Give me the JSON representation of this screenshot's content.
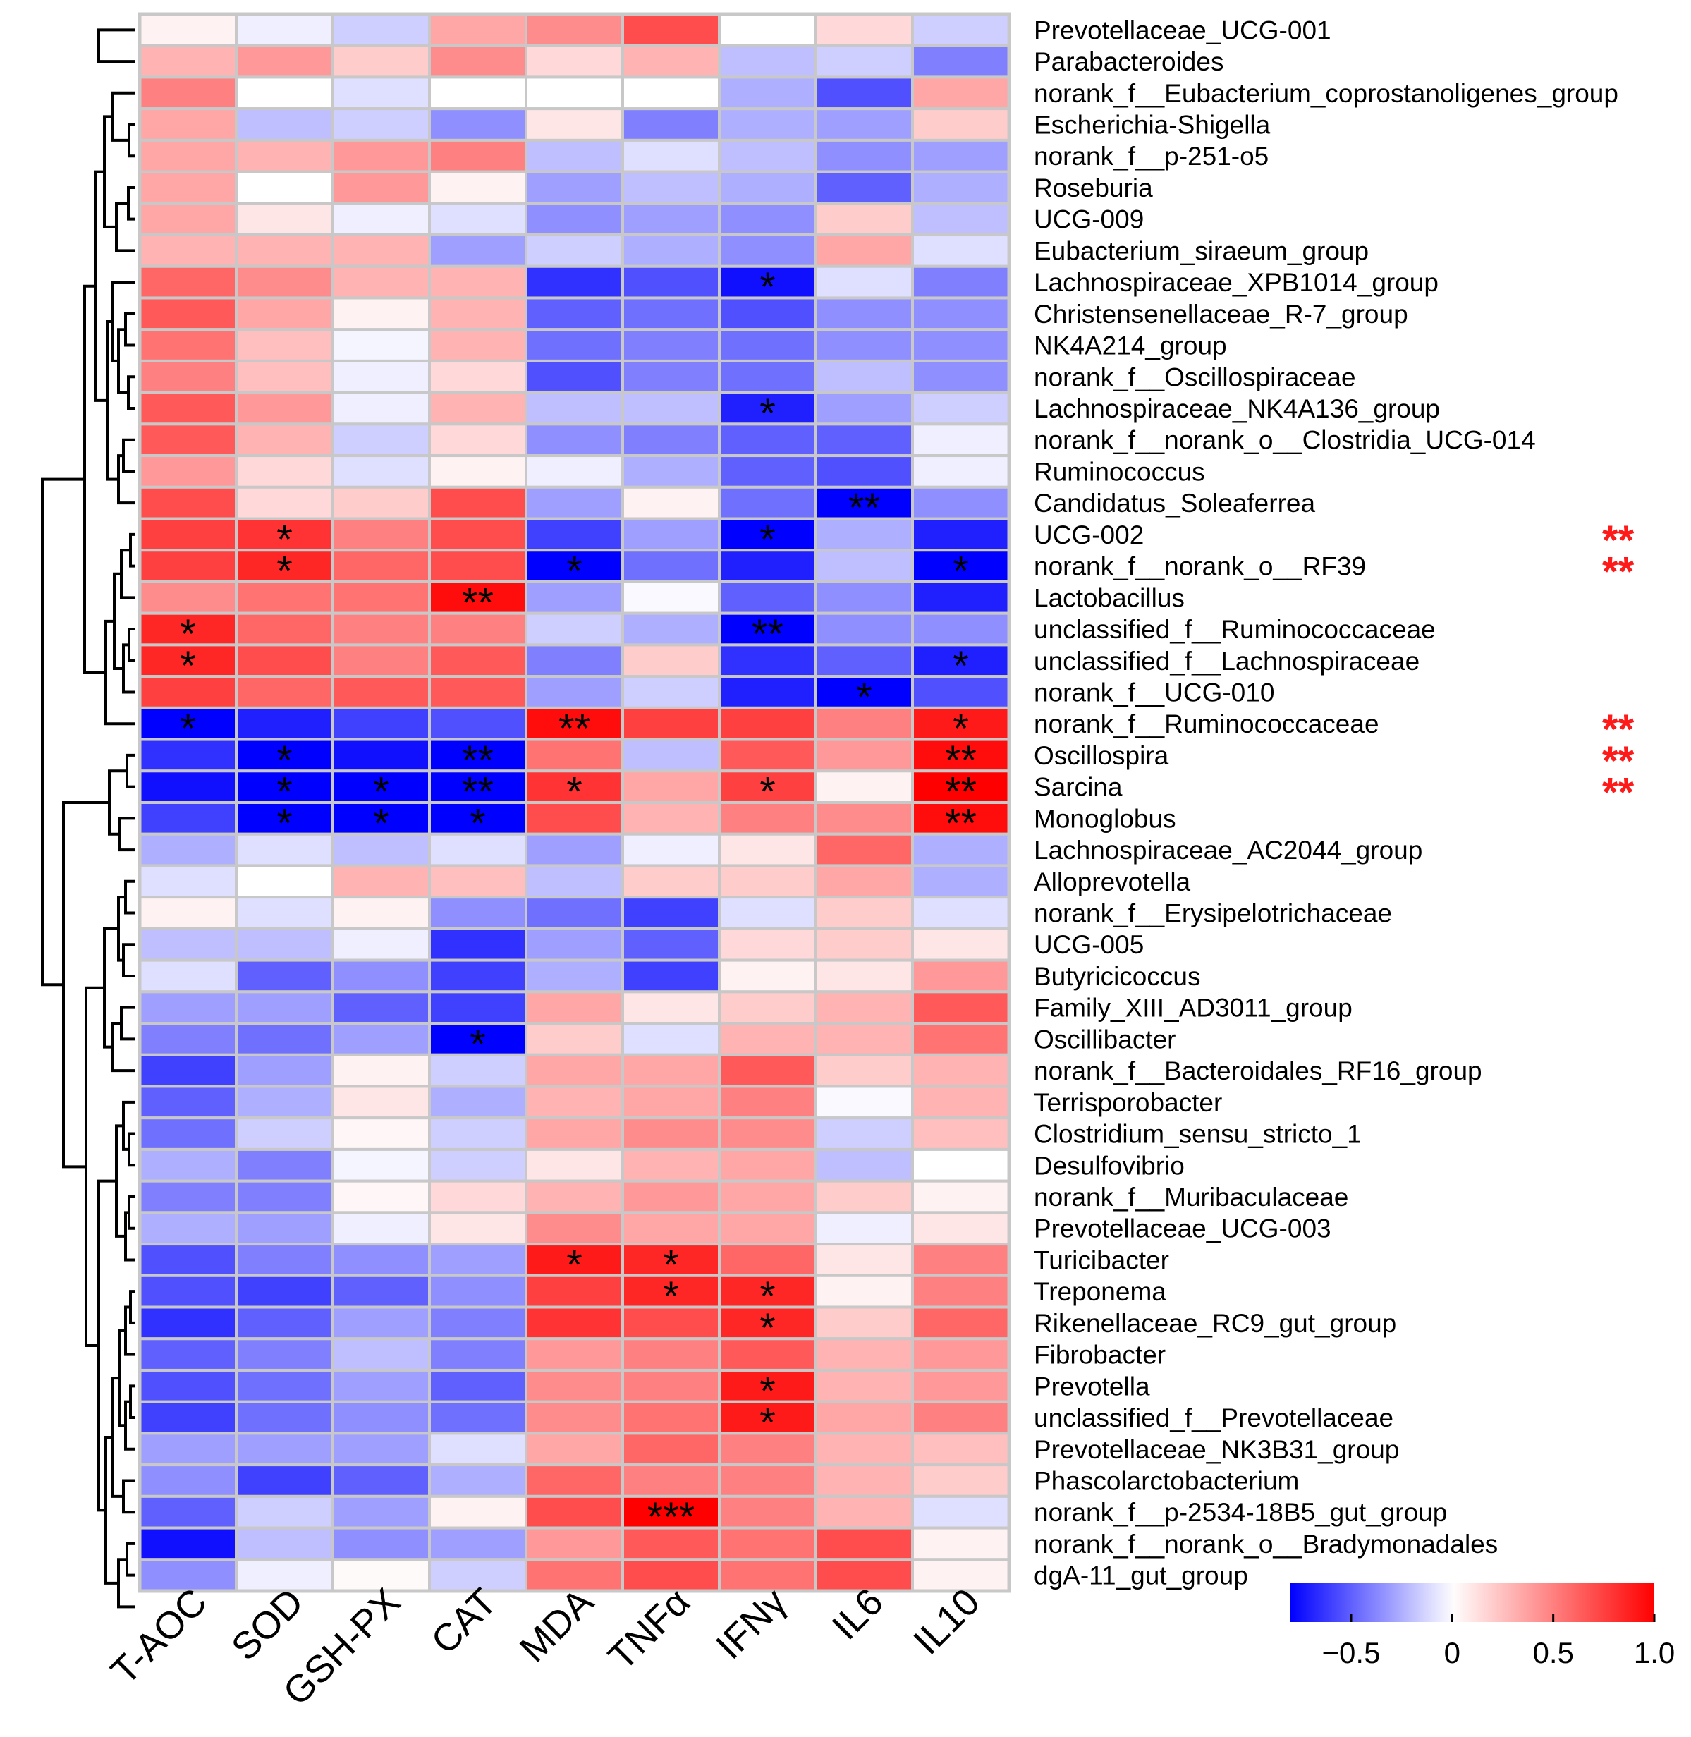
{
  "chart_data": {
    "type": "heatmap",
    "columns": [
      "T-AOC",
      "SOD",
      "GSH-PX",
      "CAT",
      "MDA",
      "TNFα",
      "IFNγ",
      "IL6",
      "IL10"
    ],
    "rows": [
      "Prevotellaceae_UCG-001",
      "Parabacteroides",
      "norank_f__Eubacterium_coprostanoligenes_group",
      "Escherichia-Shigella",
      "norank_f__p-251-o5",
      "Roseburia",
      "UCG-009",
      "Eubacterium_siraeum_group",
      "Lachnospiraceae_XPB1014_group",
      "Christensenellaceae_R-7_group",
      "NK4A214_group",
      "norank_f__Oscillospiraceae",
      "Lachnospiraceae_NK4A136_group",
      "norank_f__norank_o__Clostridia_UCG-014",
      "Ruminococcus",
      "Candidatus_Soleaferrea",
      "UCG-002",
      "norank_f__norank_o__RF39",
      "Lactobacillus",
      "unclassified_f__Ruminococcaceae",
      "unclassified_f__Lachnospiraceae",
      "norank_f__UCG-010",
      "norank_f__Ruminococcaceae",
      "Oscillospira",
      "Sarcina",
      "Monoglobus",
      "Lachnospiraceae_AC2044_group",
      "Alloprevotella",
      "norank_f__Erysipelotrichaceae",
      "UCG-005",
      "Butyricicoccus",
      "Family_XIII_AD3011_group",
      "Oscillibacter",
      "norank_f__Bacteroidales_RF16_group",
      "Terrisporobacter",
      "Clostridium_sensu_stricto_1",
      "Desulfovibrio",
      "norank_f__Muribaculaceae",
      "Prevotellaceae_UCG-003",
      "Turicibacter",
      "Treponema",
      "Rikenellaceae_RC9_gut_group",
      "Fibrobacter",
      "Prevotella",
      "unclassified_f__Prevotellaceae",
      "Prevotellaceae_NK3B31_group",
      "Phascolarctobacterium",
      "norank_f__p-2534-18B5_gut_group",
      "norank_f__norank_o__Bradymonadales",
      "dgA-11_gut_group"
    ],
    "values": [
      [
        0.05,
        -0.05,
        -0.15,
        0.35,
        0.45,
        0.7,
        0.0,
        0.15,
        -0.15
      ],
      [
        0.3,
        0.4,
        0.2,
        0.45,
        0.15,
        0.3,
        -0.2,
        -0.15,
        -0.4
      ],
      [
        0.5,
        0.0,
        -0.1,
        0.0,
        0.0,
        0.0,
        -0.25,
        -0.55,
        0.35
      ],
      [
        0.35,
        -0.2,
        -0.15,
        -0.35,
        0.1,
        -0.4,
        -0.25,
        -0.3,
        0.2
      ],
      [
        0.35,
        0.3,
        0.4,
        0.5,
        -0.2,
        -0.1,
        -0.2,
        -0.35,
        -0.3
      ],
      [
        0.35,
        0.0,
        0.4,
        0.05,
        -0.3,
        -0.2,
        -0.25,
        -0.5,
        -0.25
      ],
      [
        0.35,
        0.1,
        -0.05,
        -0.1,
        -0.35,
        -0.3,
        -0.35,
        0.2,
        -0.2
      ],
      [
        0.3,
        0.3,
        0.3,
        -0.3,
        -0.15,
        -0.25,
        -0.35,
        0.35,
        -0.1
      ],
      [
        0.6,
        0.45,
        0.3,
        0.3,
        -0.65,
        -0.55,
        -0.75,
        -0.1,
        -0.4
      ],
      [
        0.65,
        0.35,
        0.05,
        0.3,
        -0.5,
        -0.45,
        -0.55,
        -0.35,
        -0.35
      ],
      [
        0.55,
        0.25,
        -0.03,
        0.3,
        -0.45,
        -0.4,
        -0.45,
        -0.35,
        -0.35
      ],
      [
        0.5,
        0.25,
        -0.05,
        0.15,
        -0.55,
        -0.4,
        -0.45,
        -0.2,
        -0.35
      ],
      [
        0.65,
        0.4,
        -0.05,
        0.3,
        -0.2,
        -0.2,
        -0.7,
        -0.3,
        -0.15
      ],
      [
        0.65,
        0.3,
        -0.15,
        0.15,
        -0.35,
        -0.4,
        -0.5,
        -0.5,
        -0.05
      ],
      [
        0.4,
        0.15,
        -0.1,
        0.05,
        -0.05,
        -0.25,
        -0.5,
        -0.55,
        -0.05
      ],
      [
        0.7,
        0.15,
        0.2,
        0.7,
        -0.3,
        0.05,
        -0.45,
        -0.9,
        -0.35
      ],
      [
        0.75,
        0.8,
        0.5,
        0.7,
        -0.6,
        -0.3,
        -0.8,
        -0.25,
        -0.7
      ],
      [
        0.75,
        0.85,
        0.6,
        0.7,
        -0.9,
        -0.45,
        -0.7,
        -0.2,
        -0.85
      ],
      [
        0.45,
        0.55,
        0.55,
        0.95,
        -0.3,
        -0.02,
        -0.5,
        -0.35,
        -0.7
      ],
      [
        0.85,
        0.6,
        0.5,
        0.5,
        -0.15,
        -0.25,
        -0.8,
        -0.35,
        -0.35
      ],
      [
        0.85,
        0.7,
        0.5,
        0.65,
        -0.4,
        0.2,
        -0.65,
        -0.5,
        -0.7
      ],
      [
        0.75,
        0.6,
        0.65,
        0.65,
        -0.3,
        -0.15,
        -0.7,
        -0.8,
        -0.55
      ],
      [
        -0.85,
        -0.7,
        -0.6,
        -0.55,
        0.95,
        0.75,
        0.75,
        0.5,
        0.9
      ],
      [
        -0.65,
        -0.85,
        -0.75,
        -0.95,
        0.55,
        -0.2,
        0.65,
        0.4,
        0.95
      ],
      [
        -0.75,
        -0.9,
        -0.9,
        -0.95,
        0.8,
        0.35,
        0.75,
        0.05,
        1.0
      ],
      [
        -0.6,
        -0.9,
        -0.9,
        -0.85,
        0.7,
        0.3,
        0.5,
        0.45,
        0.95
      ],
      [
        -0.25,
        -0.1,
        -0.2,
        -0.1,
        -0.3,
        -0.05,
        0.1,
        0.6,
        -0.25
      ],
      [
        -0.1,
        0.0,
        0.3,
        0.25,
        -0.2,
        0.2,
        0.2,
        0.35,
        -0.25
      ],
      [
        0.05,
        -0.1,
        0.05,
        -0.35,
        -0.45,
        -0.6,
        -0.1,
        0.2,
        -0.1
      ],
      [
        -0.2,
        -0.2,
        -0.05,
        -0.65,
        -0.3,
        -0.5,
        0.15,
        0.2,
        0.1
      ],
      [
        -0.1,
        -0.5,
        -0.35,
        -0.6,
        -0.25,
        -0.6,
        0.05,
        0.1,
        0.4
      ],
      [
        -0.3,
        -0.3,
        -0.5,
        -0.6,
        0.35,
        0.1,
        0.2,
        0.3,
        0.65
      ],
      [
        -0.4,
        -0.45,
        -0.3,
        -0.85,
        0.2,
        -0.1,
        0.3,
        0.3,
        0.55
      ],
      [
        -0.6,
        -0.3,
        0.05,
        -0.15,
        0.35,
        0.35,
        0.65,
        0.2,
        0.3
      ],
      [
        -0.5,
        -0.25,
        0.1,
        -0.25,
        0.3,
        0.35,
        0.5,
        -0.02,
        0.3
      ],
      [
        -0.45,
        -0.15,
        0.03,
        -0.15,
        0.35,
        0.45,
        0.45,
        -0.15,
        0.25
      ],
      [
        -0.25,
        -0.4,
        -0.03,
        -0.15,
        0.1,
        0.3,
        0.35,
        -0.2,
        0.0
      ],
      [
        -0.4,
        -0.4,
        0.03,
        0.15,
        0.3,
        0.4,
        0.35,
        0.2,
        0.05
      ],
      [
        -0.25,
        -0.3,
        -0.05,
        0.1,
        0.45,
        0.35,
        0.35,
        -0.05,
        0.1
      ],
      [
        -0.55,
        -0.4,
        -0.35,
        -0.3,
        0.9,
        0.85,
        0.6,
        0.1,
        0.5
      ],
      [
        -0.55,
        -0.6,
        -0.5,
        -0.35,
        0.75,
        0.85,
        0.85,
        0.05,
        0.5
      ],
      [
        -0.65,
        -0.5,
        -0.3,
        -0.4,
        0.8,
        0.7,
        0.85,
        0.2,
        0.6
      ],
      [
        -0.5,
        -0.4,
        -0.2,
        -0.4,
        0.4,
        0.5,
        0.65,
        0.3,
        0.4
      ],
      [
        -0.55,
        -0.45,
        -0.3,
        -0.5,
        0.45,
        0.5,
        0.9,
        0.3,
        0.4
      ],
      [
        -0.6,
        -0.45,
        -0.35,
        -0.45,
        0.45,
        0.55,
        0.9,
        0.35,
        0.5
      ],
      [
        -0.3,
        -0.3,
        -0.3,
        -0.1,
        0.35,
        0.6,
        0.5,
        0.3,
        0.25
      ],
      [
        -0.35,
        -0.6,
        -0.5,
        -0.25,
        0.6,
        0.5,
        0.5,
        0.3,
        0.2
      ],
      [
        -0.5,
        -0.15,
        -0.3,
        0.05,
        0.7,
        1.0,
        0.5,
        0.3,
        -0.1
      ],
      [
        -0.75,
        -0.2,
        -0.35,
        -0.3,
        0.4,
        0.65,
        0.55,
        0.7,
        0.05
      ],
      [
        -0.35,
        -0.05,
        0.02,
        -0.15,
        0.55,
        0.7,
        0.55,
        0.7,
        0.05
      ]
    ],
    "significance": [
      [
        "",
        "",
        "",
        "",
        "",
        "",
        "",
        "",
        ""
      ],
      [
        "",
        "",
        "",
        "",
        "",
        "",
        "",
        "",
        ""
      ],
      [
        "",
        "",
        "",
        "",
        "",
        "",
        "",
        "",
        ""
      ],
      [
        "",
        "",
        "",
        "",
        "",
        "",
        "",
        "",
        ""
      ],
      [
        "",
        "",
        "",
        "",
        "",
        "",
        "",
        "",
        ""
      ],
      [
        "",
        "",
        "",
        "",
        "",
        "",
        "",
        "",
        ""
      ],
      [
        "",
        "",
        "",
        "",
        "",
        "",
        "",
        "",
        ""
      ],
      [
        "",
        "",
        "",
        "",
        "",
        "",
        "",
        "",
        ""
      ],
      [
        "",
        "",
        "",
        "",
        "",
        "",
        "*",
        "",
        ""
      ],
      [
        "",
        "",
        "",
        "",
        "",
        "",
        "",
        "",
        ""
      ],
      [
        "",
        "",
        "",
        "",
        "",
        "",
        "",
        "",
        ""
      ],
      [
        "",
        "",
        "",
        "",
        "",
        "",
        "",
        "",
        ""
      ],
      [
        "",
        "",
        "",
        "",
        "",
        "",
        "*",
        "",
        ""
      ],
      [
        "",
        "",
        "",
        "",
        "",
        "",
        "",
        "",
        ""
      ],
      [
        "",
        "",
        "",
        "",
        "",
        "",
        "",
        "",
        ""
      ],
      [
        "",
        "",
        "",
        "",
        "",
        "",
        "",
        "**",
        ""
      ],
      [
        "",
        "*",
        "",
        "",
        "",
        "",
        "*",
        "",
        ""
      ],
      [
        "",
        "*",
        "",
        "",
        "*",
        "",
        "",
        "",
        "*"
      ],
      [
        "",
        "",
        "",
        "**",
        "",
        "",
        "",
        "",
        ""
      ],
      [
        "*",
        "",
        "",
        "",
        "",
        "",
        "**",
        "",
        ""
      ],
      [
        "*",
        "",
        "",
        "",
        "",
        "",
        "",
        "",
        "*"
      ],
      [
        "",
        "",
        "",
        "",
        "",
        "",
        "",
        "*",
        ""
      ],
      [
        "*",
        "",
        "",
        "",
        "**",
        "",
        "",
        "",
        "*"
      ],
      [
        "",
        "*",
        "",
        "**",
        "",
        "",
        "",
        "",
        "**"
      ],
      [
        "",
        "*",
        "*",
        "**",
        "*",
        "",
        "*",
        "",
        "**"
      ],
      [
        "",
        "*",
        "*",
        "*",
        "",
        "",
        "",
        "",
        "**"
      ],
      [
        "",
        "",
        "",
        "",
        "",
        "",
        "",
        "",
        ""
      ],
      [
        "",
        "",
        "",
        "",
        "",
        "",
        "",
        "",
        ""
      ],
      [
        "",
        "",
        "",
        "",
        "",
        "",
        "",
        "",
        ""
      ],
      [
        "",
        "",
        "",
        "",
        "",
        "",
        "",
        "",
        ""
      ],
      [
        "",
        "",
        "",
        "",
        "",
        "",
        "",
        "",
        ""
      ],
      [
        "",
        "",
        "",
        "",
        "",
        "",
        "",
        "",
        ""
      ],
      [
        "",
        "",
        "",
        "*",
        "",
        "",
        "",
        "",
        ""
      ],
      [
        "",
        "",
        "",
        "",
        "",
        "",
        "",
        "",
        ""
      ],
      [
        "",
        "",
        "",
        "",
        "",
        "",
        "",
        "",
        ""
      ],
      [
        "",
        "",
        "",
        "",
        "",
        "",
        "",
        "",
        ""
      ],
      [
        "",
        "",
        "",
        "",
        "",
        "",
        "",
        "",
        ""
      ],
      [
        "",
        "",
        "",
        "",
        "",
        "",
        "",
        "",
        ""
      ],
      [
        "",
        "",
        "",
        "",
        "",
        "",
        "",
        "",
        ""
      ],
      [
        "",
        "",
        "",
        "",
        "*",
        "*",
        "",
        "",
        ""
      ],
      [
        "",
        "",
        "",
        "",
        "",
        "*",
        "*",
        "",
        ""
      ],
      [
        "",
        "",
        "",
        "",
        "",
        "",
        "*",
        "",
        ""
      ],
      [
        "",
        "",
        "",
        "",
        "",
        "",
        "",
        "",
        ""
      ],
      [
        "",
        "",
        "",
        "",
        "",
        "",
        "*",
        "",
        ""
      ],
      [
        "",
        "",
        "",
        "",
        "",
        "",
        "*",
        "",
        ""
      ],
      [
        "",
        "",
        "",
        "",
        "",
        "",
        "",
        "",
        ""
      ],
      [
        "",
        "",
        "",
        "",
        "",
        "",
        "",
        "",
        ""
      ],
      [
        "",
        "",
        "",
        "",
        "",
        "***",
        "",
        "",
        ""
      ],
      [
        "",
        "",
        "",
        "",
        "",
        "",
        "",
        "",
        ""
      ],
      [
        "",
        "",
        "",
        "",
        "",
        "",
        "",
        "",
        ""
      ]
    ],
    "row_annotations": [
      {
        "row": "UCG-002",
        "text": "**"
      },
      {
        "row": "norank_f__norank_o__RF39",
        "text": "**"
      },
      {
        "row": "norank_f__Ruminococcaceae",
        "text": "**"
      },
      {
        "row": "Oscillospira",
        "text": "**"
      },
      {
        "row": "Sarcina",
        "text": "**"
      }
    ],
    "colorbar": {
      "range": [
        -0.8,
        1.0
      ],
      "ticks": [
        -0.5,
        0,
        0.5,
        1.0
      ],
      "tick_labels": [
        "−0.5",
        "0",
        "0.5",
        "1.0"
      ],
      "low_color": "#0000ff",
      "mid_color": "#ffffff",
      "high_color": "#ff0000"
    },
    "annotation_color": "#ff1a1a"
  }
}
